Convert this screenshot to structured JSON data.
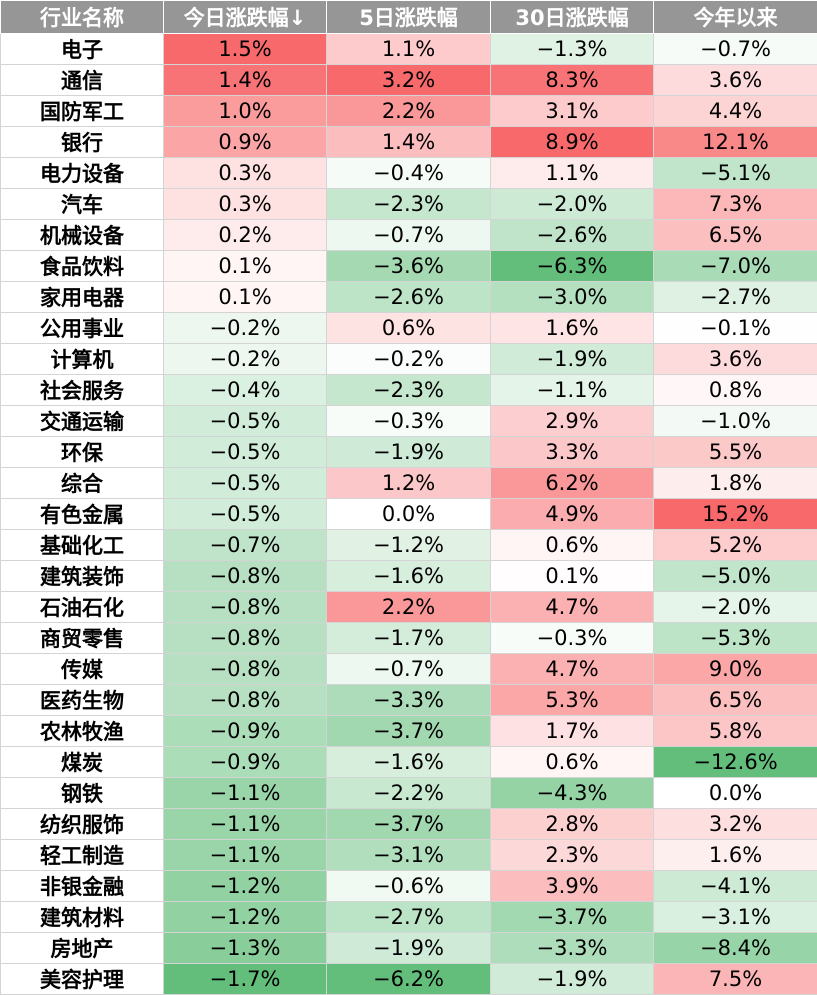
{
  "chart_data": {
    "type": "table",
    "columns": [
      "行业名称",
      "今日涨跌幅↓",
      "5日涨跌幅",
      "30日涨跌幅",
      "今年以来"
    ],
    "rows": [
      [
        "电子",
        "1.5%",
        "1.1%",
        "−1.3%",
        "−0.7%"
      ],
      [
        "通信",
        "1.4%",
        "3.2%",
        "8.3%",
        "3.6%"
      ],
      [
        "国防军工",
        "1.0%",
        "2.2%",
        "3.1%",
        "4.4%"
      ],
      [
        "银行",
        "0.9%",
        "1.4%",
        "8.9%",
        "12.1%"
      ],
      [
        "电力设备",
        "0.3%",
        "−0.4%",
        "1.1%",
        "−5.1%"
      ],
      [
        "汽车",
        "0.3%",
        "−2.3%",
        "−2.0%",
        "7.3%"
      ],
      [
        "机械设备",
        "0.2%",
        "−0.7%",
        "−2.6%",
        "6.5%"
      ],
      [
        "食品饮料",
        "0.1%",
        "−3.6%",
        "−6.3%",
        "−7.0%"
      ],
      [
        "家用电器",
        "0.1%",
        "−2.6%",
        "−3.0%",
        "−2.7%"
      ],
      [
        "公用事业",
        "−0.2%",
        "0.6%",
        "1.6%",
        "−0.1%"
      ],
      [
        "计算机",
        "−0.2%",
        "−0.2%",
        "−1.9%",
        "3.6%"
      ],
      [
        "社会服务",
        "−0.4%",
        "−2.3%",
        "−1.1%",
        "0.8%"
      ],
      [
        "交通运输",
        "−0.5%",
        "−0.3%",
        "2.9%",
        "−1.0%"
      ],
      [
        "环保",
        "−0.5%",
        "−1.9%",
        "3.3%",
        "5.5%"
      ],
      [
        "综合",
        "−0.5%",
        "1.2%",
        "6.2%",
        "1.8%"
      ],
      [
        "有色金属",
        "−0.5%",
        "0.0%",
        "4.9%",
        "15.2%"
      ],
      [
        "基础化工",
        "−0.7%",
        "−1.2%",
        "0.6%",
        "5.2%"
      ],
      [
        "建筑装饰",
        "−0.8%",
        "−1.6%",
        "0.1%",
        "−5.0%"
      ],
      [
        "石油石化",
        "−0.8%",
        "2.2%",
        "4.7%",
        "−2.0%"
      ],
      [
        "商贸零售",
        "−0.8%",
        "−1.7%",
        "−0.3%",
        "−5.3%"
      ],
      [
        "传媒",
        "−0.8%",
        "−0.7%",
        "4.7%",
        "9.0%"
      ],
      [
        "医药生物",
        "−0.8%",
        "−3.3%",
        "5.3%",
        "6.5%"
      ],
      [
        "农林牧渔",
        "−0.9%",
        "−3.7%",
        "1.7%",
        "5.8%"
      ],
      [
        "煤炭",
        "−0.9%",
        "−1.6%",
        "0.6%",
        "−12.6%"
      ],
      [
        "钢铁",
        "−1.1%",
        "−2.2%",
        "−4.3%",
        "0.0%"
      ],
      [
        "纺织服饰",
        "−1.1%",
        "−3.7%",
        "2.8%",
        "3.2%"
      ],
      [
        "轻工制造",
        "−1.1%",
        "−3.1%",
        "2.3%",
        "1.6%"
      ],
      [
        "非银金融",
        "−1.2%",
        "−0.6%",
        "3.9%",
        "−4.1%"
      ],
      [
        "建筑材料",
        "−1.2%",
        "−2.7%",
        "−3.7%",
        "−3.1%"
      ],
      [
        "房地产",
        "−1.3%",
        "−1.9%",
        "−3.3%",
        "−8.4%"
      ],
      [
        "美容护理",
        "−1.7%",
        "−6.2%",
        "−1.9%",
        "7.5%"
      ]
    ],
    "sorted_by": "今日涨跌幅",
    "sort_order": "descending",
    "color_scale": {
      "positive": "#f8696b",
      "negative": "#63be7b",
      "neutral": "#ffffff",
      "header": "#969696"
    }
  }
}
